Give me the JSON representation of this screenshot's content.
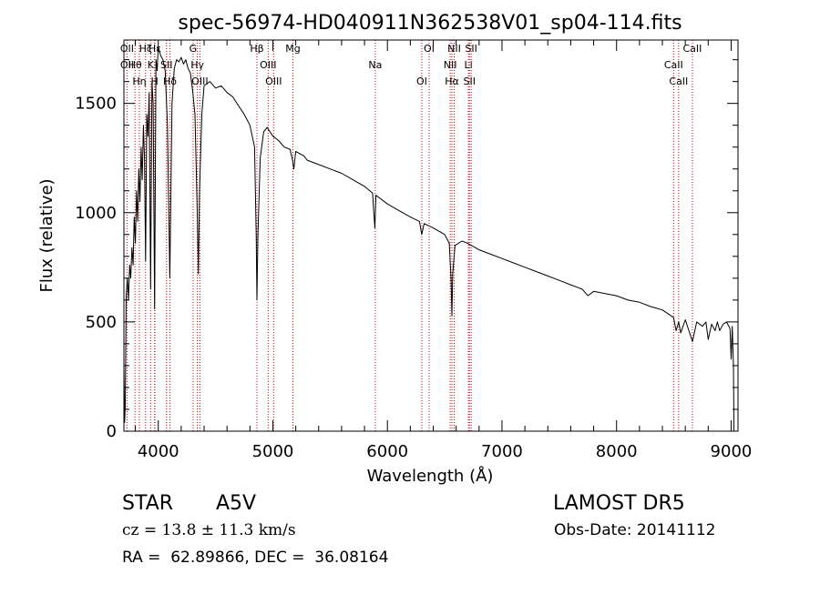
{
  "chart_data": {
    "type": "line",
    "title": "spec-56974-HD040911N362538V01_sp04-114.fits",
    "xlabel": "Wavelength (Å)",
    "ylabel": "Flux (relative)",
    "xlim": [
      3700,
      9060
    ],
    "ylim": [
      0,
      1790
    ],
    "xticks": [
      4000,
      5000,
      6000,
      7000,
      8000,
      9000
    ],
    "yticks": [
      0,
      500,
      1000,
      1500
    ],
    "grid": false,
    "line_color": "#000000",
    "marker_color": "#cc0000",
    "series": [
      {
        "values": [
          [
            3700,
            300
          ],
          [
            3706,
            40
          ],
          [
            3712,
            120
          ],
          [
            3720,
            620
          ],
          [
            3730,
            700
          ],
          [
            3740,
            600
          ],
          [
            3750,
            760
          ],
          [
            3760,
            700
          ],
          [
            3770,
            840
          ],
          [
            3780,
            760
          ],
          [
            3790,
            980
          ],
          [
            3800,
            860
          ],
          [
            3810,
            1100
          ],
          [
            3820,
            960
          ],
          [
            3830,
            1200
          ],
          [
            3840,
            1050
          ],
          [
            3850,
            1300
          ],
          [
            3860,
            1150
          ],
          [
            3870,
            1400
          ],
          [
            3880,
            1250
          ],
          [
            3889,
            780
          ],
          [
            3900,
            1450
          ],
          [
            3910,
            1350
          ],
          [
            3920,
            1550
          ],
          [
            3933,
            650
          ],
          [
            3945,
            1600
          ],
          [
            3955,
            1500
          ],
          [
            3968,
            560
          ],
          [
            3980,
            1700
          ],
          [
            3990,
            1650
          ],
          [
            4000,
            1760
          ],
          [
            4020,
            1720
          ],
          [
            4040,
            1700
          ],
          [
            4060,
            1650
          ],
          [
            4080,
            1400
          ],
          [
            4101,
            700
          ],
          [
            4120,
            1500
          ],
          [
            4140,
            1660
          ],
          [
            4160,
            1700
          ],
          [
            4180,
            1690
          ],
          [
            4200,
            1710
          ],
          [
            4220,
            1680
          ],
          [
            4240,
            1700
          ],
          [
            4260,
            1660
          ],
          [
            4280,
            1640
          ],
          [
            4300,
            1560
          ],
          [
            4320,
            1450
          ],
          [
            4340,
            1000
          ],
          [
            4350,
            720
          ],
          [
            4360,
            1100
          ],
          [
            4380,
            1450
          ],
          [
            4400,
            1580
          ],
          [
            4450,
            1600
          ],
          [
            4500,
            1570
          ],
          [
            4550,
            1580
          ],
          [
            4600,
            1550
          ],
          [
            4650,
            1530
          ],
          [
            4700,
            1490
          ],
          [
            4750,
            1450
          ],
          [
            4800,
            1400
          ],
          [
            4840,
            1300
          ],
          [
            4855,
            900
          ],
          [
            4861,
            600
          ],
          [
            4870,
            900
          ],
          [
            4890,
            1250
          ],
          [
            4920,
            1370
          ],
          [
            4950,
            1390
          ],
          [
            5000,
            1350
          ],
          [
            5050,
            1330
          ],
          [
            5100,
            1300
          ],
          [
            5150,
            1290
          ],
          [
            5172,
            1240
          ],
          [
            5183,
            1200
          ],
          [
            5200,
            1280
          ],
          [
            5270,
            1260
          ],
          [
            5300,
            1240
          ],
          [
            5400,
            1220
          ],
          [
            5500,
            1200
          ],
          [
            5600,
            1180
          ],
          [
            5700,
            1150
          ],
          [
            5800,
            1120
          ],
          [
            5870,
            1090
          ],
          [
            5890,
            930
          ],
          [
            5900,
            1080
          ],
          [
            6000,
            1040
          ],
          [
            6100,
            1010
          ],
          [
            6200,
            980
          ],
          [
            6280,
            960
          ],
          [
            6300,
            900
          ],
          [
            6320,
            950
          ],
          [
            6400,
            930
          ],
          [
            6500,
            900
          ],
          [
            6540,
            860
          ],
          [
            6555,
            700
          ],
          [
            6563,
            530
          ],
          [
            6570,
            720
          ],
          [
            6590,
            850
          ],
          [
            6650,
            870
          ],
          [
            6700,
            860
          ],
          [
            6800,
            830
          ],
          [
            6900,
            810
          ],
          [
            7000,
            790
          ],
          [
            7100,
            770
          ],
          [
            7200,
            750
          ],
          [
            7300,
            730
          ],
          [
            7400,
            710
          ],
          [
            7500,
            690
          ],
          [
            7600,
            670
          ],
          [
            7700,
            650
          ],
          [
            7750,
            620
          ],
          [
            7800,
            640
          ],
          [
            7900,
            630
          ],
          [
            8000,
            620
          ],
          [
            8100,
            600
          ],
          [
            8200,
            590
          ],
          [
            8300,
            570
          ],
          [
            8400,
            555
          ],
          [
            8498,
            520
          ],
          [
            8520,
            460
          ],
          [
            8542,
            500
          ],
          [
            8560,
            450
          ],
          [
            8600,
            510
          ],
          [
            8662,
            410
          ],
          [
            8700,
            500
          ],
          [
            8750,
            480
          ],
          [
            8780,
            500
          ],
          [
            8800,
            420
          ],
          [
            8830,
            490
          ],
          [
            8860,
            460
          ],
          [
            8880,
            500
          ],
          [
            8900,
            460
          ],
          [
            8930,
            490
          ],
          [
            8960,
            500
          ],
          [
            8990,
            470
          ],
          [
            9000,
            330
          ],
          [
            9010,
            480
          ],
          [
            9020,
            300
          ],
          [
            9025,
            0
          ]
        ]
      }
    ],
    "line_markers": [
      {
        "wavelength": 3727,
        "labels": [
          "OII",
          "OII"
        ]
      },
      {
        "wavelength": 3797,
        "labels": [
          "Hθ"
        ]
      },
      {
        "wavelength": 3835,
        "labels": [
          "Hη"
        ]
      },
      {
        "wavelength": 3889,
        "labels": [
          "Hζ"
        ]
      },
      {
        "wavelength": 3933,
        "labels": [
          "K"
        ]
      },
      {
        "wavelength": 3968,
        "labels": [
          "H"
        ]
      },
      {
        "wavelength": 3970,
        "labels": [
          "Hε"
        ]
      },
      {
        "wavelength": 4072,
        "labels": [
          "SII"
        ]
      },
      {
        "wavelength": 4102,
        "labels": [
          "Hδ"
        ]
      },
      {
        "wavelength": 4304,
        "labels": [
          "G"
        ]
      },
      {
        "wavelength": 4341,
        "labels": [
          "Hγ"
        ]
      },
      {
        "wavelength": 4363,
        "labels": [
          "OIII"
        ]
      },
      {
        "wavelength": 4861,
        "labels": [
          "Hβ"
        ]
      },
      {
        "wavelength": 4959,
        "labels": [
          "OIII"
        ]
      },
      {
        "wavelength": 5007,
        "labels": [
          "OIII"
        ]
      },
      {
        "wavelength": 5175,
        "labels": [
          "Mg"
        ]
      },
      {
        "wavelength": 5894,
        "labels": [
          "Na"
        ]
      },
      {
        "wavelength": 6300,
        "labels": [
          "OI"
        ]
      },
      {
        "wavelength": 6364,
        "labels": [
          "OI"
        ]
      },
      {
        "wavelength": 6548,
        "labels": [
          "NII"
        ]
      },
      {
        "wavelength": 6563,
        "labels": [
          "Hα"
        ]
      },
      {
        "wavelength": 6583,
        "labels": [
          "NII"
        ]
      },
      {
        "wavelength": 6707,
        "labels": [
          "Li"
        ]
      },
      {
        "wavelength": 6716,
        "labels": [
          "SII"
        ]
      },
      {
        "wavelength": 6731,
        "labels": [
          "SII"
        ]
      },
      {
        "wavelength": 8498,
        "labels": [
          "CaII"
        ]
      },
      {
        "wavelength": 8542,
        "labels": [
          "CaII"
        ]
      },
      {
        "wavelength": 8662,
        "labels": [
          "CaII"
        ]
      }
    ]
  },
  "info": {
    "object_class": "STAR",
    "subclass": "A5V",
    "survey": "LAMOST DR5",
    "velocity": "cz = 13.8 ± 11.3 km/s",
    "obs_date": "Obs-Date: 20141112",
    "coords": "RA =  62.89866, DEC =  36.08164"
  }
}
